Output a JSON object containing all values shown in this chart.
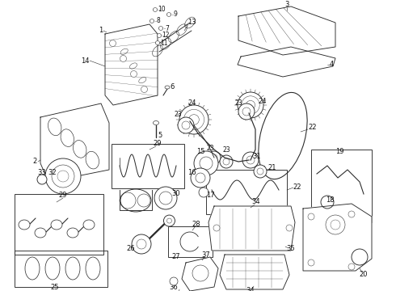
{
  "background_color": "#ffffff",
  "line_color": "#2a2a2a",
  "label_color": "#111111",
  "figsize": [
    4.9,
    3.6
  ],
  "dpi": 100,
  "label_fontsize": 6.0,
  "lw": 0.65
}
